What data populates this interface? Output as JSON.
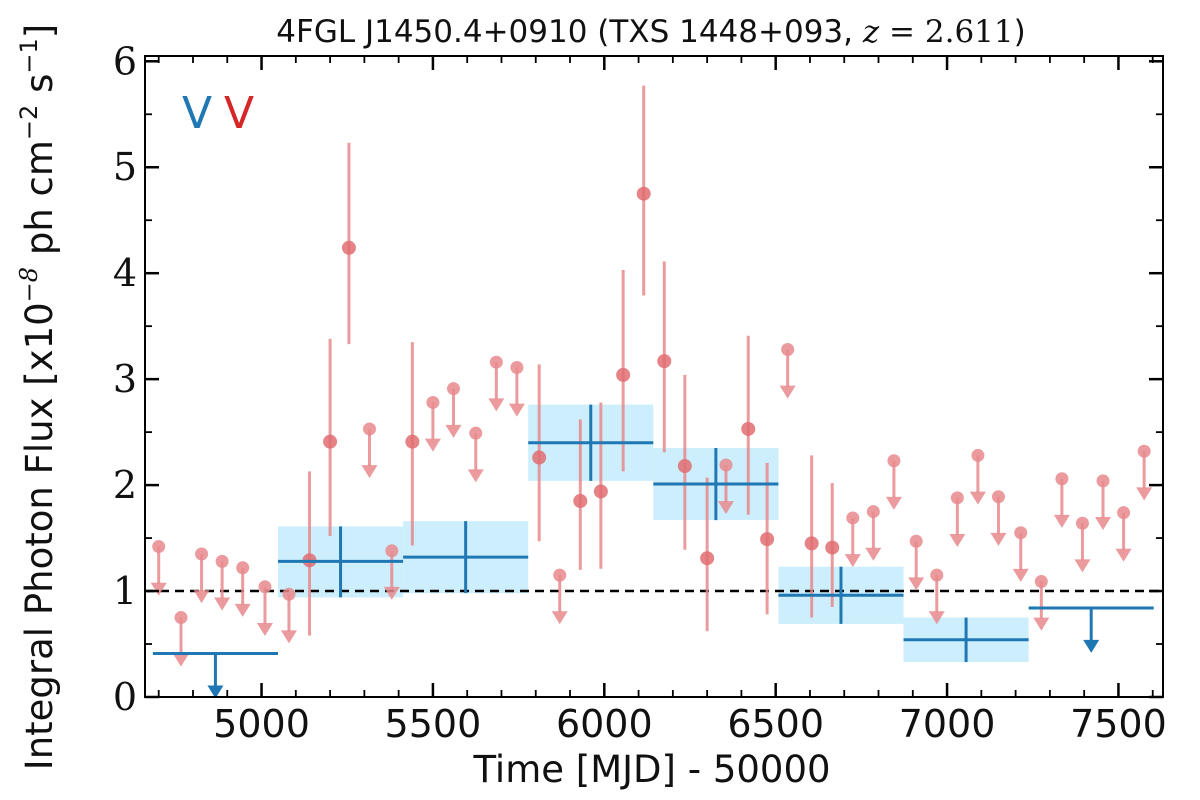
{
  "chart_data": {
    "type": "scatter",
    "title_main": "4FGL J1450.4+0910 (TXS 1448+093, ",
    "title_z_var": "z",
    "title_z_eq": " = 2.611",
    "title_close": ")",
    "xlabel": "Time [MJD] - 50000",
    "ylabel_prefix": "Integral Photon Flux [x10",
    "ylabel_exp": "−8",
    "ylabel_mid": " ph cm",
    "ylabel_exp2": "−2",
    "ylabel_mid2": " s",
    "ylabel_exp3": "−1",
    "ylabel_suffix": "]",
    "xlim": [
      4660,
      7630
    ],
    "ylim": [
      0,
      6.05
    ],
    "xticks": [
      5000,
      5500,
      6000,
      6500,
      7000,
      7500
    ],
    "yticks": [
      0,
      1,
      2,
      3,
      4,
      5,
      6
    ],
    "legend_marks": [
      {
        "text": "V",
        "color": "#1f77b4"
      },
      {
        "text": "V",
        "color": "#d62728"
      }
    ],
    "reference_line": {
      "y": 1.0,
      "style": "dashed",
      "color": "#000000"
    },
    "colors": {
      "red_points": "#e88a8d",
      "red_points_dark": "#e06d72",
      "blue_bins": "#1f77b4",
      "blue_band": "#cdeefc"
    },
    "red_detections": [
      {
        "x": 5140,
        "y": 1.29,
        "lo": 0.58,
        "hi": 2.13
      },
      {
        "x": 5200,
        "y": 2.41,
        "lo": 1.52,
        "hi": 3.38
      },
      {
        "x": 5255,
        "y": 4.24,
        "lo": 3.33,
        "hi": 5.23
      },
      {
        "x": 5440,
        "y": 2.41,
        "lo": 1.43,
        "hi": 3.35
      },
      {
        "x": 5810,
        "y": 2.26,
        "lo": 1.47,
        "hi": 3.14
      },
      {
        "x": 5930,
        "y": 1.85,
        "lo": 1.2,
        "hi": 2.62
      },
      {
        "x": 5990,
        "y": 1.94,
        "lo": 1.21,
        "hi": 2.78
      },
      {
        "x": 6055,
        "y": 3.04,
        "lo": 2.13,
        "hi": 4.03
      },
      {
        "x": 6115,
        "y": 4.75,
        "lo": 3.79,
        "hi": 5.77
      },
      {
        "x": 6175,
        "y": 3.17,
        "lo": 2.31,
        "hi": 4.11
      },
      {
        "x": 6235,
        "y": 2.18,
        "lo": 1.39,
        "hi": 3.04
      },
      {
        "x": 6300,
        "y": 1.31,
        "lo": 0.62,
        "hi": 2.07
      },
      {
        "x": 6420,
        "y": 2.53,
        "lo": 1.72,
        "hi": 3.41
      },
      {
        "x": 6475,
        "y": 1.49,
        "lo": 0.78,
        "hi": 2.21
      },
      {
        "x": 6605,
        "y": 1.45,
        "lo": 0.75,
        "hi": 2.28
      },
      {
        "x": 6665,
        "y": 1.41,
        "lo": 0.85,
        "hi": 2.02
      }
    ],
    "red_upper_limits": [
      {
        "x": 4700,
        "y": 1.42
      },
      {
        "x": 4765,
        "y": 0.75
      },
      {
        "x": 4825,
        "y": 1.35
      },
      {
        "x": 4885,
        "y": 1.28
      },
      {
        "x": 4945,
        "y": 1.22
      },
      {
        "x": 5010,
        "y": 1.04
      },
      {
        "x": 5080,
        "y": 0.97
      },
      {
        "x": 5315,
        "y": 2.53
      },
      {
        "x": 5380,
        "y": 1.38
      },
      {
        "x": 5500,
        "y": 2.78
      },
      {
        "x": 5560,
        "y": 2.91
      },
      {
        "x": 5625,
        "y": 2.49
      },
      {
        "x": 5685,
        "y": 3.16
      },
      {
        "x": 5745,
        "y": 3.11
      },
      {
        "x": 5870,
        "y": 1.15
      },
      {
        "x": 6355,
        "y": 2.19
      },
      {
        "x": 6535,
        "y": 3.28
      },
      {
        "x": 6725,
        "y": 1.69
      },
      {
        "x": 6785,
        "y": 1.75
      },
      {
        "x": 6845,
        "y": 2.23
      },
      {
        "x": 6910,
        "y": 1.47
      },
      {
        "x": 6970,
        "y": 1.15
      },
      {
        "x": 7030,
        "y": 1.88
      },
      {
        "x": 7090,
        "y": 2.28
      },
      {
        "x": 7150,
        "y": 1.89
      },
      {
        "x": 7215,
        "y": 1.55
      },
      {
        "x": 7275,
        "y": 1.09
      },
      {
        "x": 7335,
        "y": 2.06
      },
      {
        "x": 7395,
        "y": 1.64
      },
      {
        "x": 7455,
        "y": 2.04
      },
      {
        "x": 7515,
        "y": 1.74
      },
      {
        "x": 7575,
        "y": 2.32
      }
    ],
    "blue_bins": [
      {
        "x0": 5048,
        "x1": 5413,
        "y": 1.28,
        "lo": 0.94,
        "hi": 1.61,
        "band_lo": 0.94,
        "band_hi": 1.61
      },
      {
        "x0": 5413,
        "x1": 5778,
        "y": 1.32,
        "lo": 0.98,
        "hi": 1.66,
        "band_lo": 0.98,
        "band_hi": 1.66
      },
      {
        "x0": 5778,
        "x1": 6143,
        "y": 2.4,
        "lo": 2.04,
        "hi": 2.76,
        "band_lo": 2.04,
        "band_hi": 2.76
      },
      {
        "x0": 6143,
        "x1": 6508,
        "y": 2.01,
        "lo": 1.67,
        "hi": 2.35,
        "band_lo": 1.67,
        "band_hi": 2.35
      },
      {
        "x0": 6508,
        "x1": 6873,
        "y": 0.96,
        "lo": 0.69,
        "hi": 1.23,
        "band_lo": 0.69,
        "band_hi": 1.23
      },
      {
        "x0": 6873,
        "x1": 7238,
        "y": 0.54,
        "lo": 0.33,
        "hi": 0.75,
        "band_lo": 0.33,
        "band_hi": 0.75
      }
    ],
    "blue_upper_limits": [
      {
        "x0": 4683,
        "x1": 5048,
        "y": 0.41
      },
      {
        "x0": 7238,
        "x1": 7603,
        "y": 0.84
      }
    ]
  }
}
